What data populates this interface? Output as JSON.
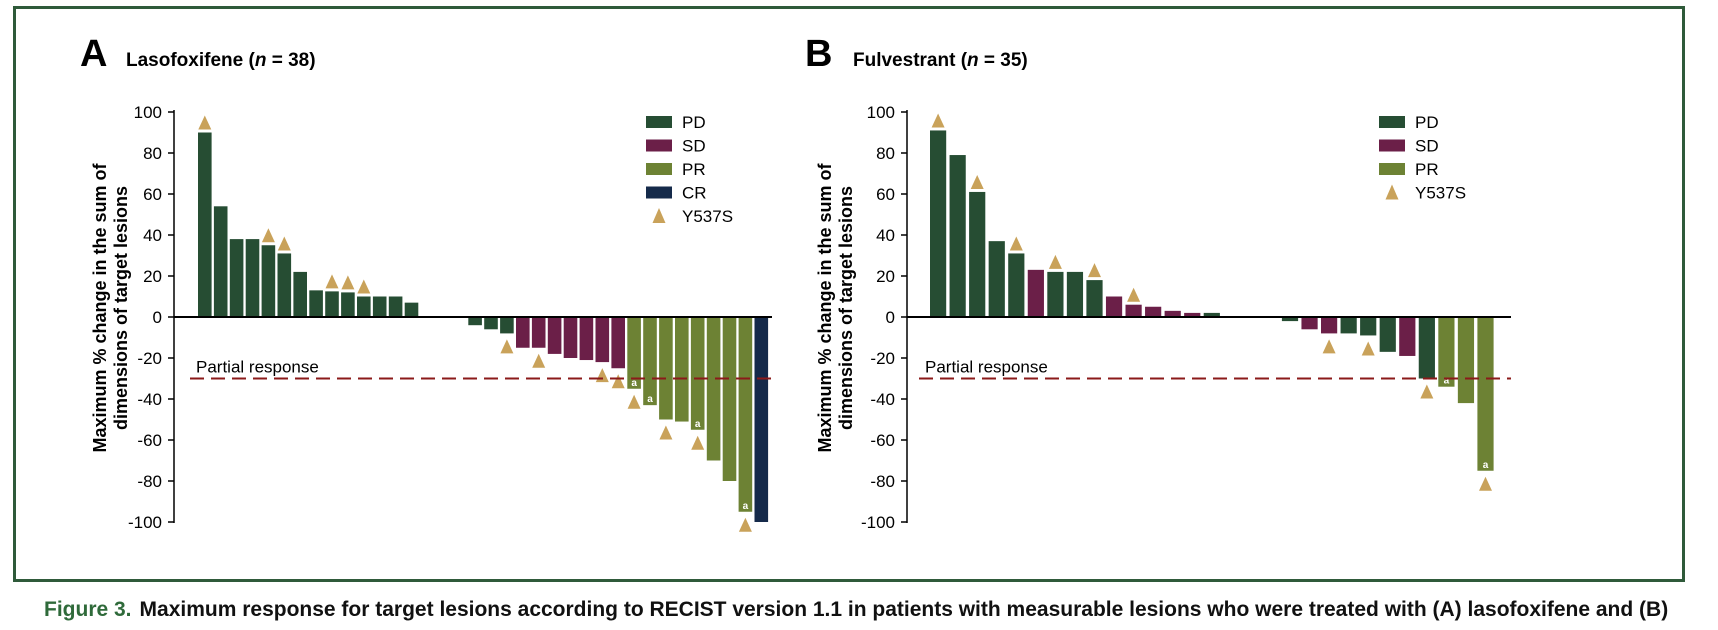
{
  "colors": {
    "PD": "#264d33",
    "SD": "#6b1f48",
    "PR": "#6d8234",
    "CR": "#152a4a",
    "Y537S": "#c9a25a",
    "threshold_line": "#8b1a1a",
    "frame": "#2f5a3a",
    "caption_label": "#2f6a3a"
  },
  "caption": {
    "label": "Figure 3.",
    "text": "Maximum response for target lesions according to RECIST version 1.1 in patients with measurable lesions who were treated with (A) lasofoxifene and (B)"
  },
  "chart_data": [
    {
      "type": "bar",
      "panel_letter": "A",
      "title_drug": "Lasofoxifene",
      "title_n_label": "n",
      "title_n_text": " = 38)",
      "ylabel_line1": "Maximum % change in the sum of",
      "ylabel_line2": "dimensions of target lesions",
      "ylim": [
        -100,
        100
      ],
      "yticks": [
        100,
        80,
        60,
        40,
        20,
        0,
        -20,
        -40,
        -60,
        -80,
        -100
      ],
      "threshold": -30,
      "threshold_label": "Partial response",
      "legend": [
        {
          "key": "PD",
          "label": "PD",
          "marker": "square"
        },
        {
          "key": "SD",
          "label": "SD",
          "marker": "square"
        },
        {
          "key": "PR",
          "label": "PR",
          "marker": "square"
        },
        {
          "key": "CR",
          "label": "CR",
          "marker": "square"
        },
        {
          "key": "Y537S",
          "label": "Y537S",
          "marker": "triangle"
        }
      ],
      "note_label": "a",
      "patients": [
        {
          "value": 90,
          "response": "PD",
          "y537s": true,
          "note": false
        },
        {
          "value": 54,
          "response": "PD",
          "y537s": false,
          "note": false
        },
        {
          "value": 38,
          "response": "PD",
          "y537s": false,
          "note": false
        },
        {
          "value": 38,
          "response": "PD",
          "y537s": false,
          "note": false
        },
        {
          "value": 35,
          "response": "PD",
          "y537s": true,
          "note": false
        },
        {
          "value": 31,
          "response": "PD",
          "y537s": true,
          "note": false
        },
        {
          "value": 22,
          "response": "PD",
          "y537s": false,
          "note": false
        },
        {
          "value": 13,
          "response": "PD",
          "y537s": false,
          "note": false
        },
        {
          "value": 12.5,
          "response": "PD",
          "y537s": true,
          "note": false
        },
        {
          "value": 12,
          "response": "PD",
          "y537s": true,
          "note": false
        },
        {
          "value": 10,
          "response": "PD",
          "y537s": true,
          "note": false
        },
        {
          "value": 10,
          "response": "PD",
          "y537s": false,
          "note": false
        },
        {
          "value": 10,
          "response": "PD",
          "y537s": false,
          "note": false
        },
        {
          "value": 7,
          "response": "PD",
          "y537s": false,
          "note": false
        },
        {
          "value": 0,
          "response": "SD",
          "y537s": false,
          "note": false
        },
        {
          "value": 0,
          "response": "SD",
          "y537s": false,
          "note": false
        },
        {
          "value": 0,
          "response": "SD",
          "y537s": false,
          "note": false
        },
        {
          "value": -4,
          "response": "PD",
          "y537s": false,
          "note": false
        },
        {
          "value": -6,
          "response": "PD",
          "y537s": false,
          "note": false
        },
        {
          "value": -8,
          "response": "PD",
          "y537s": true,
          "note": false
        },
        {
          "value": -15,
          "response": "SD",
          "y537s": false,
          "note": false
        },
        {
          "value": -15,
          "response": "SD",
          "y537s": true,
          "note": false
        },
        {
          "value": -18,
          "response": "SD",
          "y537s": false,
          "note": false
        },
        {
          "value": -20,
          "response": "SD",
          "y537s": false,
          "note": false
        },
        {
          "value": -21,
          "response": "SD",
          "y537s": false,
          "note": false
        },
        {
          "value": -22,
          "response": "SD",
          "y537s": true,
          "note": false
        },
        {
          "value": -25,
          "response": "SD",
          "y537s": true,
          "note": false
        },
        {
          "value": -35,
          "response": "PR",
          "y537s": true,
          "note": true
        },
        {
          "value": -43,
          "response": "PR",
          "y537s": false,
          "note": true
        },
        {
          "value": -50,
          "response": "PR",
          "y537s": true,
          "note": false
        },
        {
          "value": -51,
          "response": "PR",
          "y537s": false,
          "note": false
        },
        {
          "value": -55,
          "response": "PR",
          "y537s": true,
          "note": true
        },
        {
          "value": -70,
          "response": "PR",
          "y537s": false,
          "note": false
        },
        {
          "value": -80,
          "response": "PR",
          "y537s": false,
          "note": false
        },
        {
          "value": -95,
          "response": "PR",
          "y537s": true,
          "note": true
        },
        {
          "value": -100,
          "response": "CR",
          "y537s": false,
          "note": false
        }
      ]
    },
    {
      "type": "bar",
      "panel_letter": "B",
      "title_drug": "Fulvestrant",
      "title_n_label": "n",
      "title_n_text": " = 35)",
      "ylabel_line1": "Maximum % change in the sum of",
      "ylabel_line2": "dimensions of target lesions",
      "ylim": [
        -100,
        100
      ],
      "yticks": [
        100,
        80,
        60,
        40,
        20,
        0,
        -20,
        -40,
        -60,
        -80,
        -100
      ],
      "threshold": -30,
      "threshold_label": "Partial response",
      "legend": [
        {
          "key": "PD",
          "label": "PD",
          "marker": "square"
        },
        {
          "key": "SD",
          "label": "SD",
          "marker": "square"
        },
        {
          "key": "PR",
          "label": "PR",
          "marker": "square"
        },
        {
          "key": "Y537S",
          "label": "Y537S",
          "marker": "triangle"
        }
      ],
      "note_label": "a",
      "patients": [
        {
          "value": 91,
          "response": "PD",
          "y537s": true,
          "note": false
        },
        {
          "value": 79,
          "response": "PD",
          "y537s": false,
          "note": false
        },
        {
          "value": 61,
          "response": "PD",
          "y537s": true,
          "note": false
        },
        {
          "value": 37,
          "response": "PD",
          "y537s": false,
          "note": false
        },
        {
          "value": 31,
          "response": "PD",
          "y537s": true,
          "note": false
        },
        {
          "value": 23,
          "response": "SD",
          "y537s": false,
          "note": false
        },
        {
          "value": 22,
          "response": "PD",
          "y537s": true,
          "note": false
        },
        {
          "value": 22,
          "response": "PD",
          "y537s": false,
          "note": false
        },
        {
          "value": 18,
          "response": "PD",
          "y537s": true,
          "note": false
        },
        {
          "value": 10,
          "response": "SD",
          "y537s": false,
          "note": false
        },
        {
          "value": 6,
          "response": "SD",
          "y537s": true,
          "note": false
        },
        {
          "value": 5,
          "response": "SD",
          "y537s": false,
          "note": false
        },
        {
          "value": 3,
          "response": "SD",
          "y537s": false,
          "note": false
        },
        {
          "value": 2,
          "response": "SD",
          "y537s": false,
          "note": false
        },
        {
          "value": 2,
          "response": "PD",
          "y537s": false,
          "note": false
        },
        {
          "value": 0,
          "response": "SD",
          "y537s": false,
          "note": false
        },
        {
          "value": 0,
          "response": "SD",
          "y537s": false,
          "note": false
        },
        {
          "value": 0,
          "response": "SD",
          "y537s": false,
          "note": false
        },
        {
          "value": -2,
          "response": "PD",
          "y537s": false,
          "note": false
        },
        {
          "value": -6,
          "response": "SD",
          "y537s": false,
          "note": false
        },
        {
          "value": -8,
          "response": "SD",
          "y537s": true,
          "note": false
        },
        {
          "value": -8,
          "response": "PD",
          "y537s": false,
          "note": false
        },
        {
          "value": -9,
          "response": "PD",
          "y537s": true,
          "note": false
        },
        {
          "value": -17,
          "response": "PD",
          "y537s": false,
          "note": false
        },
        {
          "value": -19,
          "response": "SD",
          "y537s": false,
          "note": false
        },
        {
          "value": -30,
          "response": "PD",
          "y537s": true,
          "note": false
        },
        {
          "value": -34,
          "response": "PR",
          "y537s": false,
          "note": true
        },
        {
          "value": -42,
          "response": "PR",
          "y537s": false,
          "note": false
        },
        {
          "value": -75,
          "response": "PR",
          "y537s": true,
          "note": true
        }
      ]
    }
  ]
}
